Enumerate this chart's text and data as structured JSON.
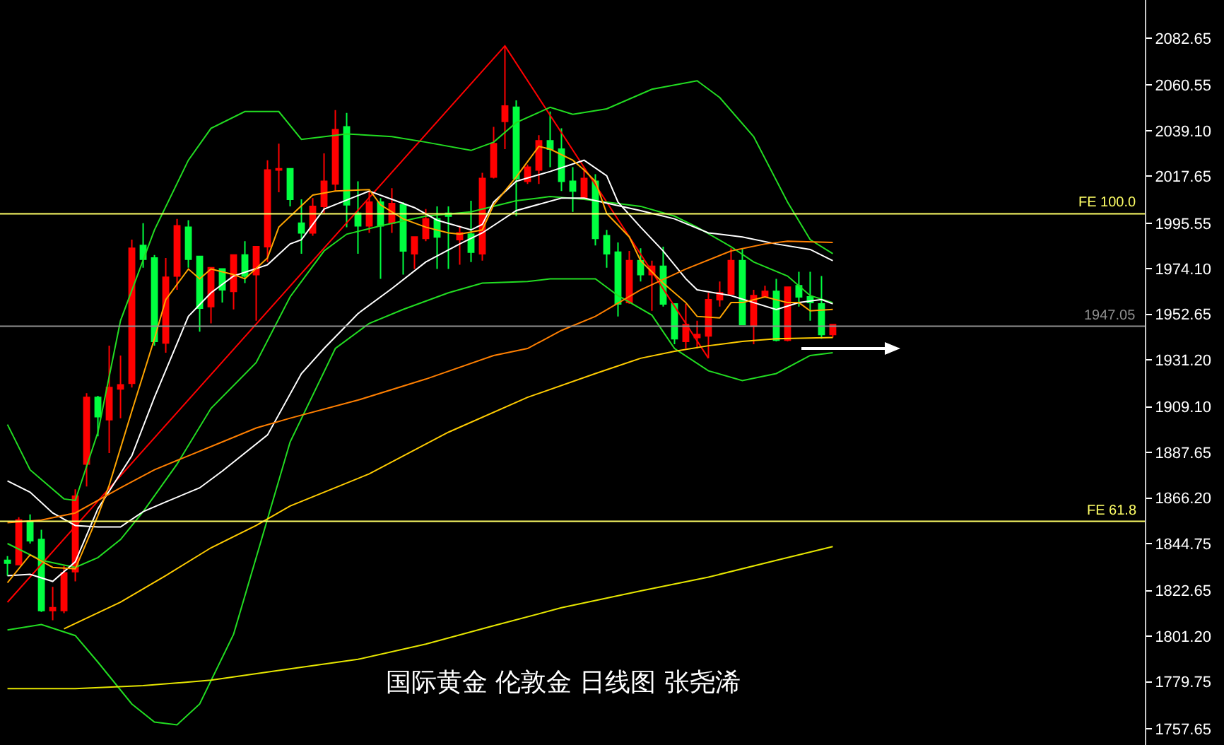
{
  "chart_data": {
    "type": "candlestick",
    "title": "国际黄金 伦敦金 日线图 张尧浠",
    "categories": [
      null,
      null,
      null,
      null,
      null,
      null,
      null,
      null,
      null,
      null,
      null,
      null,
      null,
      null,
      null,
      null,
      null,
      null,
      null,
      null,
      null,
      null,
      null,
      null,
      null,
      null,
      null,
      null,
      null,
      null,
      null,
      null,
      null,
      null,
      null,
      null,
      null,
      null,
      null,
      null,
      null,
      null,
      null,
      null,
      null,
      null,
      null,
      null,
      null,
      null,
      null,
      null,
      null,
      null,
      null,
      null,
      null,
      null,
      null,
      null,
      null,
      null,
      null,
      null,
      null,
      null,
      null,
      null,
      null,
      null,
      null,
      null,
      null,
      null
    ],
    "ohlc": [
      [
        1836.9,
        1838.9,
        1829.7,
        1835.6
      ],
      [
        1834.9,
        1857.2,
        1834.9,
        1855.9
      ],
      [
        1855.3,
        1858.5,
        1844.8,
        1846.1
      ],
      [
        1846.7,
        1851.3,
        1812.6,
        1813.3
      ],
      [
        1813.3,
        1824.4,
        1808.7,
        1814.6
      ],
      [
        1813.3,
        1834.3,
        1812.0,
        1831.0
      ],
      [
        1831.6,
        1870.3,
        1827.0,
        1867.1
      ],
      [
        1882.2,
        1915.6,
        1871.7,
        1913.6
      ],
      [
        1913.6,
        1914.3,
        1895.3,
        1904.5
      ],
      [
        1903.1,
        1937.9,
        1887.4,
        1918.2
      ],
      [
        1917.6,
        1933.3,
        1903.8,
        1919.5
      ],
      [
        1920.2,
        1987.8,
        1918.2,
        1983.8
      ],
      [
        1985.1,
        1995.6,
        1974.6,
        1978.6
      ],
      [
        1979.2,
        1980.6,
        1937.9,
        1939.9
      ],
      [
        1939.2,
        1979.2,
        1934.6,
        1970.1
      ],
      [
        1970.7,
        1997.6,
        1964.2,
        1994.3
      ],
      [
        1993.7,
        1997.0,
        1974.6,
        1978.6
      ],
      [
        1979.9,
        1979.9,
        1944.5,
        1955.6
      ],
      [
        1956.3,
        1974.6,
        1948.4,
        1974.6
      ],
      [
        1974.0,
        1974.0,
        1958.2,
        1964.2
      ],
      [
        1963.5,
        1980.6,
        1955.0,
        1980.6
      ],
      [
        1980.6,
        1987.1,
        1967.4,
        1970.7
      ],
      [
        1971.4,
        1984.5,
        1949.7,
        1984.5
      ],
      [
        1984.5,
        2025.2,
        1977.3,
        2020.6
      ],
      [
        2020.6,
        2033.0,
        2010.1,
        2021.2
      ],
      [
        2021.2,
        2021.2,
        2003.5,
        2006.8
      ],
      [
        1995.6,
        2006.8,
        1981.2,
        1991.0
      ],
      [
        1991.0,
        2007.4,
        1989.7,
        2003.5
      ],
      [
        2003.5,
        2028.4,
        2000.2,
        2015.3
      ],
      [
        2014.0,
        2048.8,
        2010.7,
        2039.6
      ],
      [
        2040.9,
        2047.5,
        1993.7,
        2004.2
      ],
      [
        2000.2,
        2015.3,
        1981.2,
        1994.3
      ],
      [
        1994.3,
        2010.7,
        1991.0,
        2005.5
      ],
      [
        2005.5,
        2007.4,
        1969.4,
        1994.3
      ],
      [
        1995.6,
        2012.0,
        1991.0,
        2004.8
      ],
      [
        2004.2,
        2005.5,
        1971.4,
        1982.5
      ],
      [
        1981.2,
        1989.1,
        1974.0,
        1989.1
      ],
      [
        1988.4,
        2002.2,
        1987.1,
        1997.6
      ],
      [
        1997.6,
        2003.5,
        1974.0,
        1989.1
      ],
      [
        2000.2,
        2003.5,
        1974.0,
        1998.9
      ],
      [
        1987.8,
        1994.3,
        1976.0,
        1991.0
      ],
      [
        1990.4,
        2006.1,
        1977.3,
        1981.9
      ],
      [
        1981.2,
        2019.3,
        1977.9,
        2016.6
      ],
      [
        2017.3,
        2040.9,
        2016.6,
        2033.0
      ],
      [
        2043.5,
        2079.0,
        2030.4,
        2050.7
      ],
      [
        2050.1,
        2053.4,
        1998.9,
        2016.6
      ],
      [
        2015.3,
        2023.2,
        2014.0,
        2021.9
      ],
      [
        2020.6,
        2037.0,
        2014.0,
        2034.3
      ],
      [
        2034.3,
        2048.1,
        2021.9,
        2030.4
      ],
      [
        2030.4,
        2040.2,
        2010.7,
        2015.3
      ],
      [
        2015.3,
        2021.9,
        2000.9,
        2010.7
      ],
      [
        2007.4,
        2021.9,
        2007.4,
        2016.6
      ],
      [
        2015.3,
        2018.6,
        1985.1,
        1988.4
      ],
      [
        1989.7,
        1992.4,
        1974.6,
        1981.2
      ],
      [
        1981.9,
        1986.5,
        1951.7,
        1957.6
      ],
      [
        1958.2,
        1982.5,
        1957.6,
        1977.9
      ],
      [
        1977.9,
        1983.8,
        1968.1,
        1971.4
      ],
      [
        1971.4,
        1977.9,
        1954.3,
        1975.3
      ],
      [
        1975.3,
        1984.5,
        1956.3,
        1957.6
      ],
      [
        1957.6,
        1957.6,
        1938.6,
        1941.2
      ],
      [
        1939.9,
        1957.6,
        1936.6,
        1947.8
      ],
      [
        1941.8,
        1949.7,
        1936.6,
        1943.2
      ],
      [
        1942.5,
        1962.8,
        1932.0,
        1959.6
      ],
      [
        1959.6,
        1968.1,
        1956.3,
        1962.8
      ],
      [
        1962.2,
        1983.8,
        1962.2,
        1977.9
      ],
      [
        1977.9,
        1983.8,
        1947.8,
        1947.8
      ],
      [
        1947.1,
        1964.2,
        1938.6,
        1961.5
      ],
      [
        1960.9,
        1966.1,
        1960.9,
        1963.5
      ],
      [
        1963.5,
        1969.4,
        1939.9,
        1940.5
      ],
      [
        1940.5,
        1965.5,
        1939.9,
        1965.5
      ],
      [
        1966.1,
        1972.7,
        1956.3,
        1960.9
      ],
      [
        1960.9,
        1972.7,
        1949.7,
        1958.2
      ],
      [
        1957.6,
        1970.7,
        1941.2,
        1943.2
      ],
      [
        1943.2,
        1947.8,
        1941.8,
        1947.8
      ]
    ],
    "colors": [
      "#00ff40",
      "#ff0000",
      "#00ff40",
      "#00ff40",
      "#ff0000",
      "#ff0000",
      "#ff0000",
      "#ff0000",
      "#00ff40",
      "#ff0000",
      "#ff0000",
      "#ff0000",
      "#00ff40",
      "#00ff40",
      "#ff0000",
      "#ff0000",
      "#00ff40",
      "#00ff40",
      "#ff0000",
      "#00ff40",
      "#ff0000",
      "#00ff40",
      "#ff0000",
      "#ff0000",
      "#ff0000",
      "#00ff40",
      "#00ff40",
      "#ff0000",
      "#ff0000",
      "#ff0000",
      "#00ff40",
      "#00ff40",
      "#ff0000",
      "#00ff40",
      "#ff0000",
      "#00ff40",
      "#ff0000",
      "#ff0000",
      "#00ff40",
      "#00ff40",
      "#ff0000",
      "#00ff40",
      "#ff0000",
      "#ff0000",
      "#ff0000",
      "#00ff40",
      "#ff0000",
      "#ff0000",
      "#00ff40",
      "#00ff40",
      "#00ff40",
      "#ff0000",
      "#00ff40",
      "#00ff40",
      "#00ff40",
      "#ff0000",
      "#00ff40",
      "#ff0000",
      "#00ff40",
      "#00ff40",
      "#ff0000",
      "#ff0000",
      "#ff0000",
      "#ff0000",
      "#ff0000",
      "#00ff40",
      "#ff0000",
      "#ff0000",
      "#00ff40",
      "#ff0000",
      "#00ff40",
      "#00ff40",
      "#00ff40",
      "#ff0000"
    ],
    "series": [
      {
        "type": "line",
        "color": "#ff0000",
        "values": [
          1817.2,
          null,
          null,
          null,
          null,
          null,
          null,
          null,
          null,
          null,
          null,
          null,
          null,
          null,
          null,
          null,
          null,
          null,
          null,
          null,
          null,
          null,
          null,
          null,
          null,
          null,
          null,
          null,
          null,
          null,
          null,
          null,
          null,
          null,
          null,
          null,
          null,
          null,
          null,
          null,
          null,
          null,
          null,
          null,
          2079.0,
          null,
          null,
          null,
          null,
          null,
          null,
          null,
          null,
          null,
          null,
          null,
          null,
          null,
          null,
          null,
          null,
          null,
          1932.0,
          null,
          null,
          null,
          null,
          null,
          null,
          null,
          null,
          null,
          null,
          null
        ]
      },
      {
        "type": "line",
        "color": "#22dd22",
        "values": [
          1900.8,
          null,
          1879.5,
          null,
          null,
          1865.8,
          1865.1,
          null,
          1897.2,
          null,
          1949.7,
          null,
          null,
          1992.4,
          null,
          null,
          2025.2,
          null,
          2040.2,
          null,
          null,
          2048.1,
          null,
          null,
          2048.1,
          null,
          2035.0,
          null,
          null,
          null,
          2037.6,
          null,
          null,
          null,
          2036.3,
          null,
          null,
          2033.7,
          null,
          null,
          null,
          2029.8,
          null,
          2033.7,
          null,
          2042.9,
          null,
          null,
          2050.1,
          null,
          2046.8,
          null,
          null,
          2049.4,
          null,
          null,
          null,
          2058.6,
          null,
          null,
          null,
          2062.6,
          null,
          2054.7,
          null,
          null,
          2036.3,
          null,
          null,
          2005.5,
          null,
          1987.8,
          null,
          1981.2
        ]
      },
      {
        "type": "line",
        "color": "#22dd22",
        "values": [
          1804.1,
          null,
          null,
          1806.7,
          null,
          null,
          1801.5,
          null,
          1789.0,
          null,
          null,
          1769.3,
          null,
          1760.8,
          null,
          1759.5,
          null,
          1769.3,
          null,
          null,
          1802.1,
          null,
          1838.2,
          null,
          null,
          1892.6,
          null,
          null,
          null,
          1936.6,
          null,
          null,
          1948.4,
          null,
          null,
          1955.0,
          null,
          null,
          null,
          1962.8,
          null,
          null,
          1967.4,
          null,
          null,
          null,
          1968.1,
          null,
          1969.4,
          null,
          null,
          null,
          1969.4,
          null,
          1961.5,
          null,
          null,
          1952.3,
          null,
          1936.6,
          null,
          null,
          1926.1,
          null,
          null,
          1921.5,
          null,
          null,
          1924.8,
          null,
          null,
          1933.3,
          null,
          1934.6
        ]
      },
      {
        "type": "line",
        "color": "#22dd22",
        "values": [
          1844.8,
          null,
          null,
          1836.9,
          null,
          null,
          1833.6,
          null,
          1838.2,
          null,
          1846.7,
          null,
          1859.8,
          null,
          null,
          1882.2,
          null,
          null,
          1908.4,
          null,
          null,
          null,
          1930.0,
          null,
          null,
          1960.9,
          null,
          null,
          1982.5,
          null,
          1990.4,
          null,
          null,
          1994.3,
          null,
          null,
          null,
          1998.9,
          null,
          null,
          null,
          2000.9,
          null,
          null,
          null,
          2006.1,
          null,
          null,
          2008.1,
          null,
          null,
          2006.8,
          null,
          null,
          null,
          null,
          2003.5,
          null,
          null,
          1998.9,
          null,
          1993.7,
          null,
          null,
          1984.5,
          null,
          1977.3,
          null,
          null,
          1970.7,
          null,
          1961.5,
          null,
          1958.2
        ]
      },
      {
        "type": "line",
        "color": "#ffffff",
        "values": [
          1874.3,
          null,
          1869.0,
          null,
          1859.2,
          null,
          1853.3,
          null,
          1852.6,
          null,
          1852.6,
          null,
          1859.8,
          null,
          1864.4,
          null,
          null,
          1871.0,
          null,
          1878.9,
          null,
          null,
          null,
          1895.9,
          null,
          null,
          1924.8,
          null,
          1936.6,
          null,
          null,
          1953.0,
          null,
          null,
          1964.8,
          null,
          null,
          1977.3,
          null,
          null,
          1985.8,
          null,
          1991.0,
          null,
          null,
          2001.5,
          null,
          null,
          null,
          2007.4,
          null,
          2007.4,
          null,
          null,
          null,
          null,
          2001.5,
          null,
          null,
          1997.6,
          null,
          null,
          1991.0,
          null,
          null,
          1989.1,
          null,
          null,
          1985.8,
          null,
          null,
          1983.2,
          null,
          1977.9
        ]
      },
      {
        "type": "line",
        "color": "#ffffff",
        "values": [
          1829.7,
          null,
          1830.3,
          null,
          1827.0,
          null,
          1836.2,
          null,
          1861.2,
          null,
          null,
          1886.1,
          null,
          1913.6,
          null,
          null,
          1951.7,
          null,
          1962.8,
          null,
          1970.7,
          null,
          null,
          1976.0,
          null,
          1985.8,
          1987.8,
          null,
          2002.2,
          null,
          null,
          null,
          2010.7,
          null,
          2006.8,
          null,
          2002.9,
          null,
          1997.0,
          null,
          null,
          1992.4,
          1995.0,
          2005.5,
          null,
          2015.3,
          null,
          null,
          2019.9,
          null,
          null,
          2025.2,
          null,
          2017.9,
          2005.5,
          null,
          1993.7,
          null,
          1982.5,
          null,
          1969.4,
          1964.2,
          null,
          null,
          1961.5,
          null,
          1958.2,
          null,
          1954.9,
          null,
          1958.2,
          null,
          1959.6,
          1957.6
        ]
      },
      {
        "type": "line",
        "color": "#ffa500",
        "values": [
          1826.4,
          null,
          1839.5,
          null,
          1833.6,
          null,
          1832.9,
          null,
          1857.9,
          1872.3,
          null,
          1907.1,
          null,
          1941.2,
          1959.6,
          null,
          1974.0,
          1969.4,
          1974.0,
          null,
          1971.4,
          1969.4,
          null,
          1979.2,
          1993.7,
          null,
          null,
          2008.8,
          null,
          2010.7,
          null,
          null,
          2011.4,
          2004.2,
          null,
          1997.6,
          null,
          1993.7,
          null,
          1991.0,
          1990.4,
          null,
          1992.4,
          2004.2,
          null,
          2017.3,
          null,
          2031.7,
          2030.4,
          null,
          2025.2,
          2020.6,
          2015.3,
          2000.2,
          null,
          1989.1,
          1977.9,
          null,
          1967.4,
          null,
          1958.2,
          1951.7,
          null,
          1951.0,
          1958.2,
          1958.2,
          null,
          1960.9,
          null,
          1958.2,
          1958.2,
          1954.3,
          null,
          1955.0
        ]
      },
      {
        "type": "line",
        "color": "#ff7f00",
        "values": [
          1854.6,
          null,
          null,
          1855.9,
          null,
          null,
          1859.2,
          null,
          null,
          null,
          1871.0,
          null,
          null,
          1879.5,
          null,
          null,
          1886.1,
          null,
          null,
          1892.6,
          null,
          null,
          1899.2,
          null,
          null,
          1903.8,
          null,
          null,
          null,
          null,
          null,
          1912.3,
          null,
          null,
          null,
          null,
          null,
          1922.2,
          null,
          null,
          null,
          null,
          null,
          1933.3,
          null,
          null,
          1936.6,
          null,
          null,
          1945.1,
          null,
          null,
          1951.7,
          null,
          null,
          null,
          1964.2,
          null,
          null,
          null,
          1974.0,
          null,
          null,
          null,
          1982.5,
          null,
          null,
          1985.8,
          null,
          1987.1,
          null,
          null,
          null,
          1986.5
        ]
      },
      {
        "type": "line",
        "color": "#ffcc00",
        "values": [
          null,
          null,
          null,
          null,
          null,
          1804.7,
          null,
          null,
          null,
          null,
          1817.2,
          null,
          null,
          null,
          1829.7,
          null,
          null,
          null,
          1842.8,
          null,
          null,
          null,
          1853.3,
          null,
          null,
          1862.5,
          null,
          null,
          null,
          null,
          null,
          null,
          1877.6,
          null,
          null,
          null,
          null,
          null,
          null,
          1897.2,
          null,
          null,
          null,
          null,
          null,
          null,
          1913.6,
          null,
          null,
          null,
          null,
          null,
          1924.8,
          null,
          null,
          null,
          1932.0,
          null,
          null,
          1935.3,
          null,
          null,
          1937.9,
          null,
          null,
          1939.9,
          null,
          null,
          1941.2,
          null,
          null,
          null,
          null,
          1941.8
        ]
      },
      {
        "type": "line",
        "color": "#e6e600",
        "values": [
          1776.5,
          null,
          null,
          null,
          null,
          null,
          1776.5,
          null,
          null,
          null,
          null,
          null,
          1777.9,
          null,
          null,
          null,
          null,
          null,
          1780.5,
          null,
          null,
          null,
          null,
          null,
          1785.1,
          null,
          null,
          null,
          null,
          null,
          null,
          1790.3,
          null,
          null,
          null,
          null,
          null,
          1797.5,
          null,
          null,
          null,
          null,
          null,
          1806.1,
          null,
          null,
          null,
          null,
          null,
          1814.6,
          null,
          null,
          null,
          null,
          null,
          null,
          1822.5,
          null,
          null,
          null,
          null,
          null,
          1829.0,
          null,
          null,
          null,
          null,
          null,
          1836.9,
          null,
          null,
          null,
          null,
          1843.4
        ]
      }
    ],
    "ylim": [
      1750.0,
      2100.6
    ],
    "yticks": [
      {
        "value": 2082.65,
        "label": "2082.65"
      },
      {
        "value": 2060.55,
        "label": "2060.55"
      },
      {
        "value": 2039.1,
        "label": "2039.10"
      },
      {
        "value": 2017.65,
        "label": "2017.65"
      },
      {
        "value": 1995.55,
        "label": "1995.55"
      },
      {
        "value": 1974.1,
        "label": "1974.10"
      },
      {
        "value": 1952.65,
        "label": "1952.65"
      },
      {
        "value": 1931.2,
        "label": "1931.20"
      },
      {
        "value": 1909.1,
        "label": "1909.10"
      },
      {
        "value": 1887.65,
        "label": "1887.65"
      },
      {
        "value": 1866.2,
        "label": "1866.20"
      },
      {
        "value": 1844.75,
        "label": "1844.75"
      },
      {
        "value": 1822.65,
        "label": "1822.65"
      },
      {
        "value": 1801.2,
        "label": "1801.20"
      },
      {
        "value": 1779.75,
        "label": "1779.75"
      },
      {
        "value": 1757.65,
        "label": "1757.65"
      }
    ],
    "ref_lines": [
      {
        "axis": "y",
        "value": 2000.0,
        "label": "FE 100.0",
        "color": "#ffff66"
      },
      {
        "axis": "y",
        "value": 1855.3,
        "label": "FE 61.8",
        "color": "#ffff66"
      },
      {
        "axis": "y",
        "value": 1947.05,
        "label": "1947.05",
        "color": "#909090"
      }
    ],
    "tick_labels": "y"
  }
}
